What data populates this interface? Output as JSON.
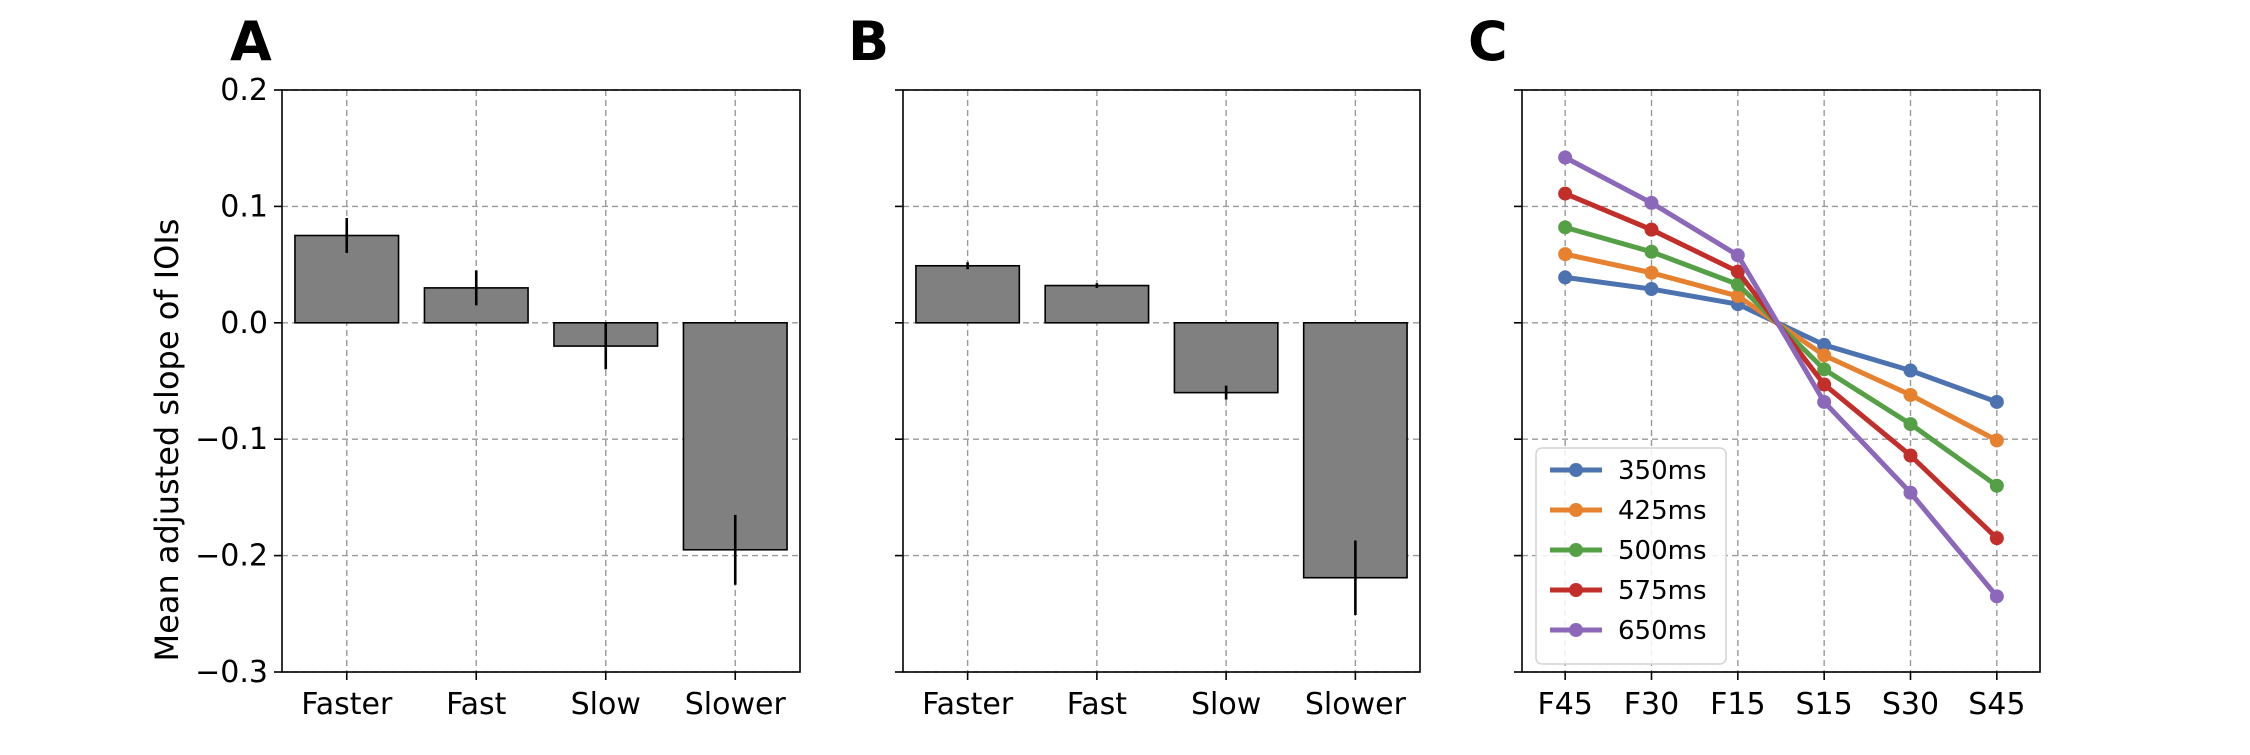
{
  "figure": {
    "panel_letters": [
      "A",
      "B",
      "C"
    ],
    "ylabel": "Mean adjusted slope of IOIs",
    "ylim": [
      -0.3,
      0.2
    ],
    "yticks": [
      -0.3,
      -0.2,
      -0.1,
      0.0,
      0.1,
      0.2
    ],
    "ytick_labels": [
      "−0.3",
      "−0.2",
      "−0.1",
      "0.0",
      "0.1",
      "0.2"
    ],
    "grid": "dashed"
  },
  "chart_data": [
    {
      "panel": "A",
      "type": "bar",
      "categories": [
        "Faster",
        "Fast",
        "Slow",
        "Slower"
      ],
      "values": [
        0.075,
        0.03,
        -0.02,
        -0.195
      ],
      "errors": [
        0.015,
        0.015,
        0.02,
        0.03
      ],
      "bar_color": "#808080",
      "ylim": [
        -0.3,
        0.2
      ],
      "grid": true
    },
    {
      "panel": "B",
      "type": "bar",
      "categories": [
        "Faster",
        "Fast",
        "Slow",
        "Slower"
      ],
      "values": [
        0.049,
        0.032,
        -0.06,
        -0.219
      ],
      "errors": [
        0.003,
        0.002,
        0.006,
        0.032
      ],
      "bar_color": "#808080",
      "ylim": [
        -0.3,
        0.2
      ],
      "grid": true
    },
    {
      "panel": "C",
      "type": "line",
      "categories": [
        "F45",
        "F30",
        "F15",
        "S15",
        "S30",
        "S45"
      ],
      "ylim": [
        -0.3,
        0.2
      ],
      "grid": true,
      "legend_position": "lower-left",
      "series": [
        {
          "name": "350ms",
          "color": "#4c72b0",
          "values": [
            0.039,
            0.029,
            0.016,
            -0.019,
            -0.041,
            -0.068
          ]
        },
        {
          "name": "425ms",
          "color": "#e6812f",
          "values": [
            0.059,
            0.043,
            0.023,
            -0.028,
            -0.062,
            -0.101
          ]
        },
        {
          "name": "500ms",
          "color": "#55a046",
          "values": [
            0.082,
            0.061,
            0.033,
            -0.04,
            -0.087,
            -0.14
          ]
        },
        {
          "name": "575ms",
          "color": "#c22e2a",
          "values": [
            0.111,
            0.08,
            0.044,
            -0.053,
            -0.114,
            -0.185
          ]
        },
        {
          "name": "650ms",
          "color": "#8c68ba",
          "values": [
            0.142,
            0.103,
            0.058,
            -0.068,
            -0.146,
            -0.235
          ]
        }
      ]
    }
  ]
}
